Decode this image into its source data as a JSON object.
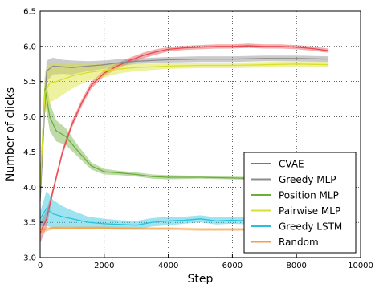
{
  "chart_data": {
    "type": "line",
    "title": "",
    "xlabel": "Step",
    "ylabel": "Number of clicks",
    "xlim": [
      0,
      10000
    ],
    "ylim": [
      3.0,
      6.5
    ],
    "xticks": [
      0,
      2000,
      4000,
      6000,
      8000,
      10000
    ],
    "yticks": [
      3.0,
      3.5,
      4.0,
      4.5,
      5.0,
      5.5,
      6.0,
      6.5
    ],
    "grid": true,
    "legend_position": "lower-right",
    "series": [
      {
        "name": "CVAE",
        "color": "#e8474c",
        "x": [
          0,
          200,
          400,
          700,
          1000,
          1300,
          1600,
          2000,
          2400,
          2800,
          3200,
          3600,
          4000,
          4500,
          5000,
          5500,
          6000,
          6500,
          7000,
          7500,
          8000,
          8500,
          9000
        ],
        "mean": [
          3.35,
          3.55,
          3.95,
          4.5,
          4.9,
          5.2,
          5.45,
          5.62,
          5.72,
          5.8,
          5.87,
          5.92,
          5.96,
          5.98,
          5.99,
          6.0,
          6.0,
          6.01,
          6.0,
          6.0,
          5.99,
          5.97,
          5.94
        ],
        "band": [
          0.15,
          0.12,
          0.05,
          0.05,
          0.05,
          0.05,
          0.05,
          0.04,
          0.04,
          0.04,
          0.04,
          0.04,
          0.03,
          0.03,
          0.03,
          0.03,
          0.03,
          0.03,
          0.03,
          0.03,
          0.03,
          0.03,
          0.03
        ]
      },
      {
        "name": "Greedy MLP",
        "color": "#8c8c8c",
        "x": [
          0,
          200,
          400,
          700,
          1000,
          1500,
          2000,
          2500,
          3000,
          3500,
          4000,
          5000,
          6000,
          7000,
          8000,
          9000
        ],
        "mean": [
          3.8,
          5.65,
          5.72,
          5.71,
          5.7,
          5.72,
          5.74,
          5.77,
          5.79,
          5.8,
          5.81,
          5.82,
          5.82,
          5.83,
          5.83,
          5.82
        ],
        "band": [
          0.1,
          0.15,
          0.12,
          0.1,
          0.1,
          0.07,
          0.06,
          0.05,
          0.04,
          0.04,
          0.04,
          0.04,
          0.04,
          0.04,
          0.04,
          0.04
        ]
      },
      {
        "name": "Position MLP",
        "color": "#6cae3e",
        "x": [
          0,
          150,
          300,
          500,
          800,
          1200,
          1600,
          2000,
          2500,
          3000,
          3500,
          4000,
          5000,
          6000,
          7000
        ],
        "mean": [
          4.0,
          5.4,
          5.0,
          4.8,
          4.72,
          4.5,
          4.3,
          4.22,
          4.2,
          4.18,
          4.15,
          4.14,
          4.14,
          4.13,
          4.12
        ],
        "band": [
          0.1,
          0.2,
          0.2,
          0.15,
          0.12,
          0.08,
          0.05,
          0.04,
          0.03,
          0.03,
          0.03,
          0.03,
          0.02,
          0.02,
          0.02
        ]
      },
      {
        "name": "Pairwise MLP",
        "color": "#d9e02c",
        "x": [
          0,
          150,
          300,
          500,
          1000,
          1500,
          2000,
          2500,
          3000,
          4000,
          5000,
          6000,
          7000,
          8000,
          9000
        ],
        "mean": [
          4.0,
          5.35,
          5.48,
          5.5,
          5.58,
          5.63,
          5.66,
          5.68,
          5.7,
          5.72,
          5.73,
          5.73,
          5.74,
          5.75,
          5.74
        ],
        "band": [
          0.15,
          0.3,
          0.28,
          0.25,
          0.18,
          0.12,
          0.1,
          0.06,
          0.05,
          0.04,
          0.04,
          0.04,
          0.04,
          0.04,
          0.04
        ]
      },
      {
        "name": "Greedy LSTM",
        "color": "#27c1dd",
        "x": [
          0,
          200,
          400,
          700,
          1000,
          1500,
          2000,
          2500,
          3000,
          3500,
          4000,
          4500,
          5000,
          5500,
          6000,
          6500,
          7000
        ],
        "mean": [
          3.55,
          3.7,
          3.62,
          3.58,
          3.55,
          3.5,
          3.48,
          3.47,
          3.46,
          3.5,
          3.52,
          3.53,
          3.55,
          3.52,
          3.53,
          3.52,
          3.52
        ],
        "band": [
          0.1,
          0.25,
          0.2,
          0.15,
          0.12,
          0.08,
          0.07,
          0.06,
          0.06,
          0.06,
          0.06,
          0.05,
          0.05,
          0.05,
          0.05,
          0.05,
          0.05
        ]
      },
      {
        "name": "Random",
        "color": "#f5a046",
        "x": [
          0,
          200,
          400,
          1000,
          2000,
          3000,
          4000,
          5000,
          6000,
          7000
        ],
        "mean": [
          3.38,
          3.4,
          3.42,
          3.42,
          3.42,
          3.41,
          3.41,
          3.4,
          3.4,
          3.4
        ],
        "band": [
          0.03,
          0.03,
          0.02,
          0.02,
          0.02,
          0.02,
          0.02,
          0.02,
          0.02,
          0.02
        ]
      }
    ]
  }
}
